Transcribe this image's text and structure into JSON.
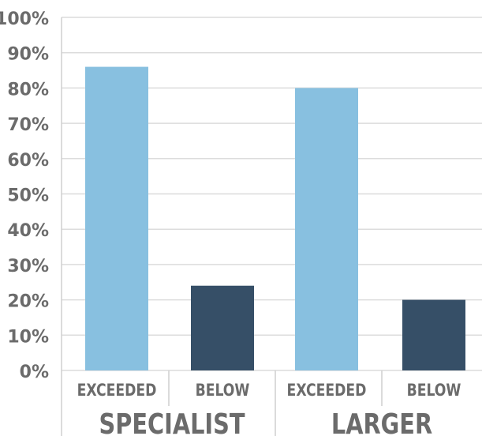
{
  "chart_data": {
    "type": "bar",
    "groups": [
      "SPECIALIST",
      "LARGER"
    ],
    "categories": [
      "EXCEEDED",
      "BELOW",
      "EXCEEDED",
      "BELOW"
    ],
    "series": [
      {
        "values": [
          86,
          24,
          80,
          20
        ]
      }
    ],
    "bar_colors": [
      "#88c0e0",
      "#364f67",
      "#88c0e0",
      "#364f67"
    ],
    "ylim": [
      0,
      100
    ],
    "y_ticks": [
      0,
      10,
      20,
      30,
      40,
      50,
      60,
      70,
      80,
      90,
      100
    ],
    "y_tick_labels": [
      "0%",
      "10%",
      "20%",
      "30%",
      "40%",
      "50%",
      "60%",
      "70%",
      "80%",
      "90%",
      "100%"
    ],
    "grid": true,
    "legend": "none",
    "title": "",
    "xlabel": "",
    "ylabel": ""
  },
  "colors": {
    "grid": "#dcdcdc",
    "axis": "#cfcfcf",
    "label": "#6b6b6b"
  }
}
